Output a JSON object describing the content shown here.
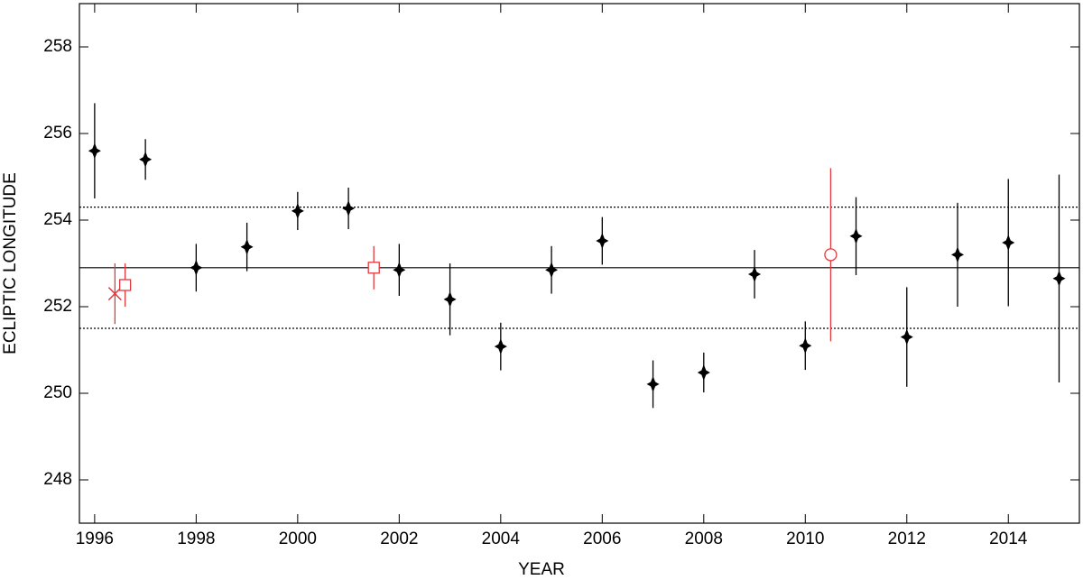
{
  "chart_data": {
    "type": "scatter",
    "xlabel": "YEAR",
    "ylabel": "ECLIPTIC LONGITUDE",
    "xlim": [
      1995.7,
      2015.4
    ],
    "ylim": [
      247,
      259
    ],
    "xticks": [
      1996,
      1998,
      2000,
      2002,
      2004,
      2006,
      2008,
      2010,
      2012,
      2014
    ],
    "yticks": [
      248,
      250,
      252,
      254,
      256,
      258
    ],
    "hlines": [
      {
        "value": 252.9,
        "style": "solid"
      },
      {
        "value": 254.3,
        "style": "dotted"
      },
      {
        "value": 251.5,
        "style": "dotted"
      }
    ],
    "series": [
      {
        "color": "#000000",
        "marker": "star",
        "x": [
          1996,
          1997,
          1998,
          1999,
          2000,
          2001,
          2002,
          2003,
          2004,
          2005,
          2006,
          2007,
          2008,
          2009,
          2010,
          2011,
          2012,
          2013,
          2014,
          2015
        ],
        "values": [
          255.6,
          255.4,
          252.9,
          253.38,
          254.21,
          254.27,
          252.85,
          252.17,
          251.08,
          252.85,
          253.52,
          250.21,
          250.48,
          252.75,
          251.1,
          253.63,
          251.3,
          253.2,
          253.48,
          252.65
        ],
        "errors": [
          1.1,
          0.47,
          0.55,
          0.56,
          0.44,
          0.48,
          0.6,
          0.83,
          0.55,
          0.55,
          0.55,
          0.55,
          0.46,
          0.56,
          0.56,
          0.9,
          1.15,
          1.2,
          1.47,
          2.4
        ]
      },
      {
        "color": "#e0393e",
        "marker": "x",
        "x": [
          1996.4
        ],
        "values": [
          252.3
        ],
        "errors": [
          0.7
        ]
      },
      {
        "color": "#e0393e",
        "marker": "square",
        "x": [
          1996.6,
          2001.5
        ],
        "values": [
          252.5,
          252.9
        ],
        "errors": [
          0.5,
          0.5
        ]
      },
      {
        "color": "#e0393e",
        "marker": "circle",
        "x": [
          2010.5
        ],
        "values": [
          253.2
        ],
        "errors": [
          2.0
        ]
      }
    ]
  }
}
